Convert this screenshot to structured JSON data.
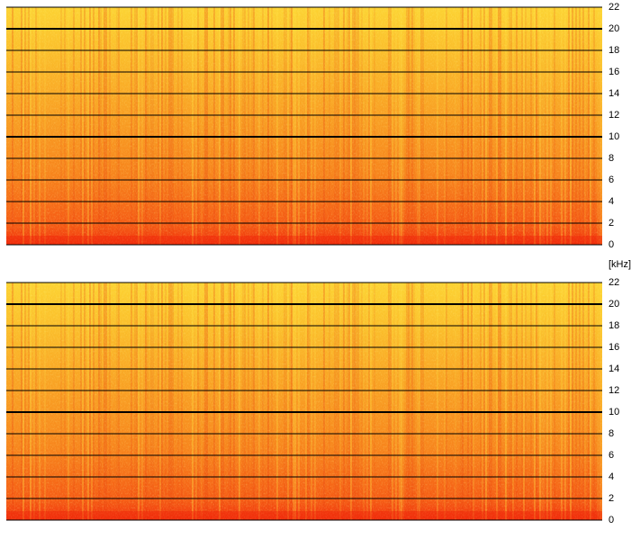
{
  "chart_data": [
    {
      "type": "spectrogram",
      "ylim": [
        0,
        22
      ],
      "yticks": [
        0,
        2,
        4,
        6,
        8,
        10,
        12,
        14,
        16,
        18,
        20,
        22
      ],
      "grid": true,
      "emphasized_gridlines": [
        10,
        20
      ]
    },
    {
      "type": "spectrogram",
      "ylabel": "[kHz]",
      "ylim": [
        0,
        22
      ],
      "yticks": [
        0,
        2,
        4,
        6,
        8,
        10,
        12,
        14,
        16,
        18,
        20,
        22
      ],
      "grid": true,
      "emphasized_gridlines": [
        10,
        20
      ]
    }
  ]
}
